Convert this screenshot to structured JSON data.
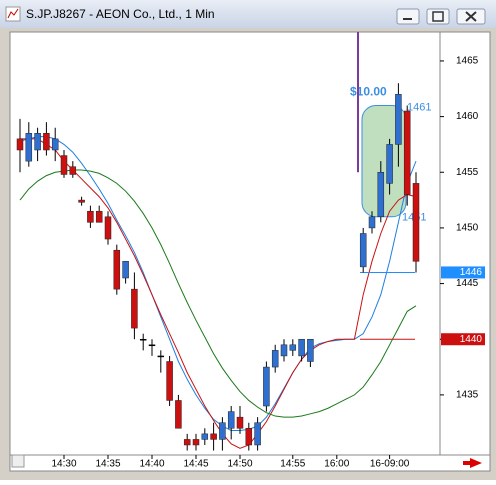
{
  "window": {
    "title": "S.JP.J8267 - AEON Co., Ltd., 1 Min"
  },
  "chart_data": {
    "type": "candlestick",
    "categories": [
      null,
      null,
      null,
      null,
      null,
      "14:30",
      null,
      null,
      null,
      null,
      "14:35",
      null,
      null,
      null,
      null,
      "14:40",
      null,
      null,
      null,
      null,
      "14:45",
      null,
      null,
      null,
      null,
      "14:50",
      null,
      null,
      null,
      null,
      null,
      "14:55",
      null,
      null,
      null,
      null,
      "16:00",
      null,
      null,
      null,
      null,
      null,
      "16-09:00",
      null,
      null,
      null
    ],
    "open": [
      1458.0,
      1456.0,
      1457.0,
      1458.5,
      1457.0,
      1456.5,
      1455.5,
      1452.5,
      1451.5,
      1451.5,
      1451.0,
      1448.0,
      1445.5,
      1444.5,
      1440.0,
      1439.5,
      1438.5,
      1438.0,
      1434.5,
      1431.0,
      1431.0,
      1431.0,
      1431.5,
      1431.0,
      1432.0,
      1433.0,
      1432.0,
      1430.5,
      1434.0,
      1437.5,
      1438.5,
      1439.0,
      1438.5,
      1438.0,
      null,
      null,
      null,
      null,
      null,
      1446.5,
      1450.0,
      1451.0,
      1454.0,
      1457.5,
      1460.5,
      1454.0
    ],
    "high": [
      1459.8,
      1459.5,
      1459.0,
      1459.5,
      1459.0,
      1457.0,
      1456.0,
      1452.8,
      1452.0,
      1452.0,
      1451.5,
      1448.5,
      1447.0,
      1446.0,
      1440.5,
      1440.0,
      1439.0,
      1438.5,
      1435.0,
      1431.5,
      1431.5,
      1432.0,
      1432.5,
      1433.0,
      1434.0,
      1434.0,
      1432.5,
      1433.0,
      1438.0,
      1439.5,
      1440.0,
      1440.0,
      1440.0,
      1440.0,
      null,
      null,
      null,
      null,
      null,
      1450.0,
      1451.5,
      1456.0,
      1458.0,
      1463.0,
      1461.0,
      1455.0
    ],
    "low": [
      1455.0,
      1455.5,
      1456.0,
      1456.5,
      1456.0,
      1454.5,
      1454.5,
      1452.0,
      1450.0,
      1450.5,
      1448.5,
      1444.0,
      1445.0,
      1440.0,
      1439.0,
      1438.5,
      1437.0,
      1434.0,
      1432.0,
      1430.0,
      1430.0,
      1430.5,
      1430.0,
      1430.0,
      1431.0,
      1431.5,
      1430.0,
      1430.0,
      1433.5,
      1437.0,
      1438.0,
      1438.5,
      1438.0,
      1437.5,
      null,
      null,
      null,
      null,
      null,
      1446.0,
      1449.5,
      1450.5,
      1453.0,
      1455.5,
      1452.0,
      1446.0
    ],
    "close": [
      1457.0,
      1458.5,
      1458.5,
      1457.0,
      1458.0,
      1454.8,
      1454.8,
      1452.3,
      1450.5,
      1450.5,
      1449.0,
      1444.5,
      1447.0,
      1441.0,
      1440.0,
      1439.5,
      1438.5,
      1434.5,
      1432.0,
      1430.5,
      1430.5,
      1431.5,
      1431.0,
      1432.5,
      1433.5,
      1432.0,
      1430.5,
      1432.5,
      1437.5,
      1439.0,
      1439.5,
      1439.5,
      1440.0,
      1440.0,
      null,
      null,
      null,
      null,
      null,
      1449.5,
      1451.0,
      1455.0,
      1457.5,
      1462.0,
      1453.0,
      1447.0
    ],
    "up_color": "#2f6fd0",
    "down_color": "#cc1010",
    "series": [
      {
        "color": "#1f7fe0",
        "values": [
          1457.8,
          1458,
          1458.2,
          1458.2,
          1458,
          1457.5,
          1456.8,
          1455.8,
          1454.7,
          1453.5,
          1452.2,
          1450.7,
          1449.3,
          1447.8,
          1446,
          1444,
          1442,
          1440,
          1438,
          1436.4,
          1435,
          1433.8,
          1432.8,
          1432.2,
          1431.8,
          1431.8,
          1431.9,
          1432.2,
          1433,
          1434.2,
          1435.6,
          1437,
          1438.2,
          1439.2,
          1439.6,
          1439.8,
          1439.9,
          1440,
          1440,
          1440.5,
          1442,
          1444,
          1447,
          1450.5,
          1454,
          1456
        ]
      },
      {
        "color": "#cc1010",
        "values": [
          1458,
          1458,
          1458,
          1457.5,
          1457,
          1456,
          1455.2,
          1454.4,
          1453.6,
          1452.8,
          1451.8,
          1450.5,
          1449,
          1447.5,
          1445.8,
          1444,
          1442.2,
          1440.5,
          1438.8,
          1437,
          1435.5,
          1434,
          1432.7,
          1431.5,
          1430.6,
          1430.2,
          1430.5,
          1431.5,
          1432.6,
          1434,
          1435.5,
          1437,
          1438.2,
          1439,
          1439.5,
          1439.8,
          1440,
          1440,
          1440,
          1444,
          1447,
          1449.5,
          1451.5,
          1452.5,
          1453,
          1452.8
        ]
      },
      {
        "color": "#1a7a1a",
        "values": [
          1452.5,
          1453.5,
          1454.2,
          1454.7,
          1455,
          1455.1,
          1455.2,
          1455.2,
          1455.1,
          1454.9,
          1454.5,
          1454,
          1453.3,
          1452.4,
          1451.3,
          1450,
          1448.5,
          1446.8,
          1445,
          1443.3,
          1441.7,
          1440.2,
          1438.7,
          1437.4,
          1436.3,
          1435.3,
          1434.5,
          1433.9,
          1433.4,
          1433.1,
          1433,
          1433,
          1433.1,
          1433.3,
          1433.5,
          1433.8,
          1434.2,
          1434.6,
          1435,
          1435.7,
          1436.8,
          1438,
          1439.5,
          1441,
          1442.5,
          1443
        ]
      }
    ],
    "price_lines": [
      {
        "value": 1446,
        "color": "#1f8fff"
      },
      {
        "value": 1440,
        "color": "#cc1010"
      }
    ],
    "measure": {
      "label": "$10.00",
      "high": 1461,
      "low": 1451
    },
    "ylim": [
      1429.6,
      1467.6
    ],
    "yticks": [
      1435,
      1440,
      1445,
      1450,
      1455,
      1460,
      1465
    ]
  }
}
